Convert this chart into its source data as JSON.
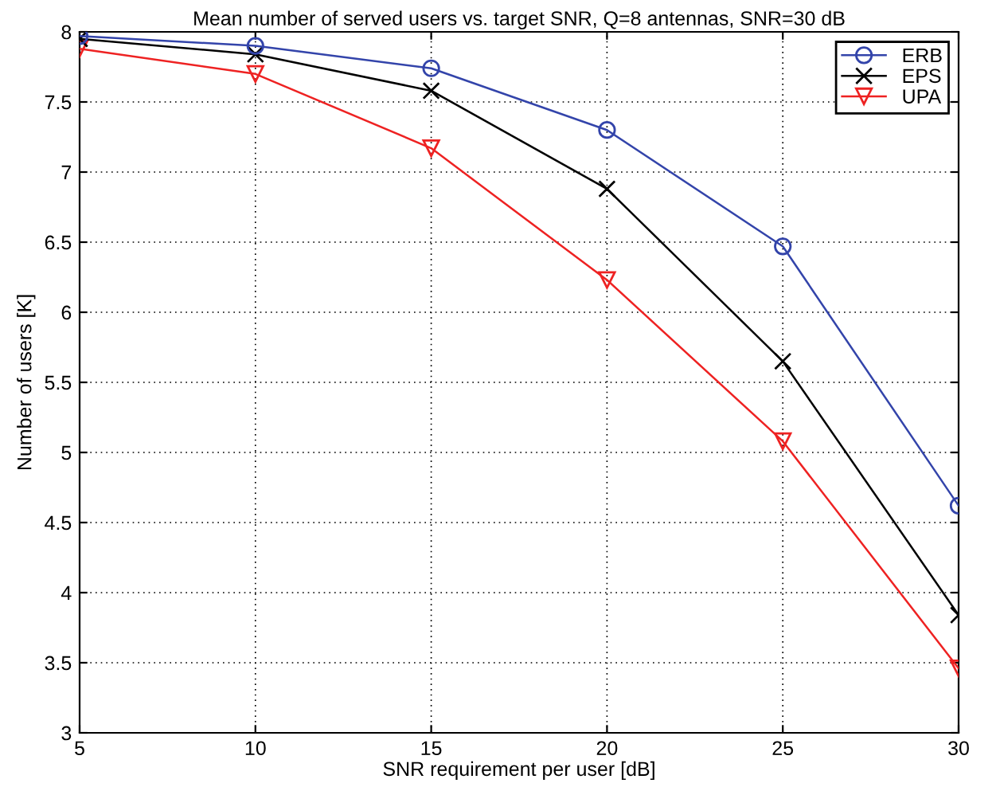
{
  "chart_data": {
    "type": "line",
    "title": "Mean number of served users vs. target SNR, Q=8 antennas, SNR=30 dB",
    "xlabel": "SNR requirement per user [dB]",
    "ylabel": "Number of users [K]",
    "x": [
      5,
      10,
      15,
      20,
      25,
      30
    ],
    "series": [
      {
        "name": "ERB",
        "color": "#3344aa",
        "marker": "circle",
        "values": [
          7.97,
          7.9,
          7.74,
          7.3,
          6.47,
          4.62
        ]
      },
      {
        "name": "EPS",
        "color": "#000000",
        "marker": "cross",
        "values": [
          7.95,
          7.84,
          7.58,
          6.88,
          5.65,
          3.84
        ]
      },
      {
        "name": "UPA",
        "color": "#ee2222",
        "marker": "triangle",
        "values": [
          7.88,
          7.7,
          7.17,
          6.23,
          5.08,
          3.46
        ]
      }
    ],
    "xlim": [
      5,
      30
    ],
    "xticks": [
      5,
      10,
      15,
      20,
      25,
      30
    ],
    "ylim": [
      3,
      8
    ],
    "yticks": [
      3,
      3.5,
      4,
      4.5,
      5,
      5.5,
      6,
      6.5,
      7,
      7.5,
      8
    ],
    "grid": true,
    "legend": "top right",
    "line_style": "solid"
  }
}
